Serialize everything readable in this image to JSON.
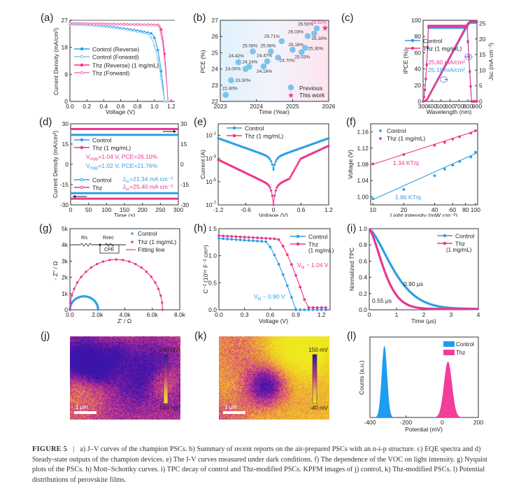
{
  "figure": {
    "caption_label": "FIGURE 5",
    "caption_text": "a) J–V curves of the champion PSCs. b) Summary of recent reports on the air-prepared PSCs with an n-i-p structure. c) EQE spectra and d) Steady-state outputs of the champion devices. e) The I-V curves measured under dark conditions. f) The dependence of the VOC on light intensity. g) Nyquist plots of the PSCs. h) Mott–Schottky curves. i) TPC decay of control and Thz-modified PSCs. KPFM images of j) control, k) Thz-modified PSCs. l) Potential distributions of perovskite films.",
    "panel_labels": [
      "(a)",
      "(b)",
      "(c)",
      "(d)",
      "(e)",
      "(f)",
      "(g)",
      "(h)",
      "(i)",
      "(j)",
      "(k)",
      "(l)"
    ]
  },
  "colors": {
    "control": "#2e9fe6",
    "thz": "#e8388f",
    "axis": "#333333"
  },
  "chart_data": [
    {
      "id": "a",
      "type": "line",
      "xlabel": "Voltage (V)",
      "ylabel": "Current Density (mA/cm²)",
      "xlim": [
        0,
        1.2
      ],
      "ylim": [
        0,
        27
      ],
      "xticks": [
        0,
        0.2,
        0.4,
        0.6,
        0.8,
        1.0,
        1.2
      ],
      "yticks": [
        0,
        9,
        18,
        27
      ],
      "series": [
        {
          "name": "Control (Reverse)",
          "color": "#2e9fe6",
          "marker": "filled",
          "jsc": 25.7,
          "voc": 1.13,
          "kink": 0.95
        },
        {
          "name": "Control (Forward)",
          "color": "#7cc4f0",
          "marker": "open",
          "jsc": 25.6,
          "voc": 1.13,
          "kink": 0.9
        },
        {
          "name": "Thz (Reverse)",
          "suffix": "(1 mg/mL)",
          "color": "#e8388f",
          "marker": "filled",
          "jsc": 26.0,
          "voc": 1.16,
          "kink": 1.05
        },
        {
          "name": "Thz (Forward)",
          "color": "#f07ab6",
          "marker": "open",
          "jsc": 25.9,
          "voc": 1.16,
          "kink": 1.03
        }
      ]
    },
    {
      "id": "b",
      "type": "scatter",
      "xlabel": "Time (Year)",
      "ylabel": "PCE (%)",
      "xlim": [
        2023,
        2026
      ],
      "ylim": [
        22,
        27
      ],
      "xticks": [
        2023,
        2024,
        2025,
        2026
      ],
      "yticks": [
        22,
        23,
        24,
        25,
        26,
        27
      ],
      "series": [
        {
          "name": "Previous",
          "color": "#7ec3ec",
          "points": [
            [
              2023.15,
              22.4,
              "22.40%"
            ],
            [
              2023.3,
              23.3,
              "23.30%"
            ],
            [
              2023.5,
              24.42,
              "24.42%"
            ],
            [
              2023.7,
              24.0,
              "24.00%"
            ],
            [
              2023.8,
              24.14,
              "24.14%"
            ],
            [
              2023.9,
              25.08,
              "25.08%"
            ],
            [
              2024.2,
              24.16,
              "24.16%"
            ],
            [
              2024.3,
              24.47,
              "24.47%"
            ],
            [
              2024.4,
              25.08,
              "25.08%"
            ],
            [
              2024.6,
              24.7,
              "24.70%"
            ],
            [
              2024.7,
              25.71,
              "25.71%"
            ],
            [
              2025.0,
              25.18,
              "25.18%"
            ],
            [
              2025.25,
              25.03,
              "25.03%"
            ],
            [
              2025.35,
              25.3,
              "25.30%"
            ],
            [
              2025.42,
              26.03,
              "26.03%"
            ],
            [
              2025.6,
              26.18,
              "26.18%"
            ],
            [
              2025.67,
              26.5,
              "26.50%"
            ]
          ]
        },
        {
          "name": "This work",
          "color": "#e8388f",
          "points": [
            [
              2025.9,
              26.52,
              "26.52%"
            ]
          ]
        }
      ]
    },
    {
      "id": "c",
      "type": "line",
      "xlabel": "Wavelength (nm)",
      "ylabel": "IPCE (%)",
      "y2label": "Jsc (mA cm⁻²)",
      "xlim": [
        300,
        900
      ],
      "ylim": [
        0,
        100
      ],
      "y2lim": [
        0,
        26
      ],
      "xticks": [
        300,
        400,
        500,
        600,
        700,
        800,
        900
      ],
      "yticks": [
        0,
        20,
        40,
        60,
        80,
        100
      ],
      "y2ticks": [
        0,
        5,
        10,
        15,
        20,
        25
      ],
      "series": [
        {
          "name": "Control",
          "color": "#2e9fe6",
          "plateau": 91,
          "integrated": "25.19 mA/cm²",
          "jsc_end": 25.19
        },
        {
          "name": "Thz (1 mg/mL)",
          "color": "#e8388f",
          "plateau": 93,
          "integrated": "25.60 mA/cm²",
          "jsc_end": 25.6
        }
      ]
    },
    {
      "id": "d",
      "type": "line",
      "xlabel": "Time (s)",
      "ylabel": "Current Density (mA/cm²)",
      "y2label": "PCE (%)",
      "xlim": [
        0,
        300
      ],
      "ylim": [
        -30,
        30
      ],
      "xticks": [
        0,
        50,
        100,
        150,
        200,
        250,
        300
      ],
      "yticks": [
        -30,
        -15,
        0,
        15,
        30
      ],
      "y2ticks": [
        -30,
        -15,
        0,
        15,
        30
      ],
      "series": [
        {
          "name": "Control",
          "color": "#2e9fe6",
          "pce": 21.76,
          "jsc": -21.34
        },
        {
          "name": "Thz (1 mg/mL)",
          "color": "#e8388f",
          "pce": 26.1,
          "jsc": -25.4
        }
      ],
      "annotations": {
        "thz_vmpp": "=1.04 V, PCE=26.10%",
        "control_vmpp": "=1.02 V, PCE=21.76%",
        "control_jsc": "=21.34 mA cm⁻²",
        "thz_jsc": "=25.40 mA cm⁻²",
        "legend2_control": "Control",
        "legend2_thz": "Thz",
        "vmpp": "V",
        "mpp": "mpp",
        "jsc": "J",
        "sc": "sc"
      }
    },
    {
      "id": "e",
      "type": "line",
      "xlabel": "Voltage (V)",
      "ylabel": "Current (A)",
      "yscale": "log",
      "xlim": [
        -1.2,
        1.2
      ],
      "ylim_exp": [
        -7,
        0
      ],
      "xticks": [
        -1.2,
        -0.6,
        0,
        0.6,
        1.2
      ],
      "yticks_exp": [
        -7,
        -5,
        -3,
        -1
      ],
      "series": [
        {
          "name": "Control",
          "color": "#2e9fe6"
        },
        {
          "name": "Thz (1 mg/mL)",
          "color": "#e8388f"
        }
      ]
    },
    {
      "id": "f",
      "type": "scatter",
      "xlabel": "Light intensity (mW cm⁻²)",
      "ylabel": "Voltage (V)",
      "xscale": "log",
      "xlim": [
        9.5,
        105
      ],
      "ylim": [
        0.98,
        1.18
      ],
      "xticks": [
        10,
        20,
        40,
        60,
        80,
        100
      ],
      "yticks": [
        1.0,
        1.04,
        1.08,
        1.12,
        1.16
      ],
      "series": [
        {
          "name": "Control",
          "color": "#2e9fe6",
          "slope_label": "1.86 KT/q",
          "points": [
            [
              10,
              0.995
            ],
            [
              20,
              1.018
            ],
            [
              40,
              1.052
            ],
            [
              50,
              1.068
            ],
            [
              60,
              1.078
            ],
            [
              70,
              1.087
            ],
            [
              90,
              1.098
            ],
            [
              100,
              1.11
            ]
          ],
          "fit": [
            [
              10,
              0.993
            ],
            [
              105,
              1.109
            ]
          ]
        },
        {
          "name": "Thz (1 mg/mL)",
          "color": "#e8388f",
          "slope_label": "1.34 KT/q",
          "points": [
            [
              10,
              1.081
            ],
            [
              20,
              1.104
            ],
            [
              40,
              1.127
            ],
            [
              50,
              1.134
            ],
            [
              60,
              1.142
            ],
            [
              70,
              1.148
            ],
            [
              90,
              1.157
            ],
            [
              100,
              1.163
            ]
          ],
          "fit": [
            [
              10,
              1.08
            ],
            [
              105,
              1.164
            ]
          ]
        }
      ]
    },
    {
      "id": "g",
      "type": "scatter",
      "xlabel": "Z' / Ω",
      "ylabel": "- Z'' / Ω",
      "xlim": [
        0,
        8000
      ],
      "ylim": [
        0,
        5000
      ],
      "xticks": [
        0,
        2000,
        4000,
        6000,
        8000
      ],
      "xticklabels": [
        "0.0",
        "2.0k",
        "4.0k",
        "6.0k",
        "8.0k"
      ],
      "yticks": [
        0,
        1000,
        2000,
        3000,
        4000,
        5000
      ],
      "yticklabels": [
        "0",
        "1k",
        "2k",
        "3k",
        "4k",
        "5k"
      ],
      "circuit": {
        "rs": "Rs",
        "rrec": "Rrec",
        "cpe": "CPE"
      },
      "series": [
        {
          "name": "Control",
          "color": "#2e9fe6",
          "x0": 0,
          "x1": 2050,
          "peak": 830
        },
        {
          "name": "Thz (1 mg/mL)",
          "color": "#e8388f",
          "x0": 0,
          "x1": 6750,
          "peak": 3100
        },
        {
          "name": "Fitting line",
          "color": "#e8388f"
        }
      ]
    },
    {
      "id": "h",
      "type": "line",
      "xlabel": "Voltage (V)",
      "ylabel": "C⁻² (10¹⁶ F⁻² cm⁴)",
      "xlim": [
        0,
        1.3
      ],
      "ylim": [
        0,
        1.5
      ],
      "xticks": [
        0,
        0.3,
        0.6,
        0.9,
        1.2
      ],
      "yticks": [
        0,
        0.5,
        1.0,
        1.5
      ],
      "series": [
        {
          "name": "Control",
          "color": "#2e9fe6",
          "vbi": 0.9,
          "vbi_label": "~ 0.90 V",
          "plateau": 1.32
        },
        {
          "name": "Thz",
          "suffix": "(1 mg/mL)",
          "color": "#e8388f",
          "vbi": 1.04,
          "vbi_label": "~ 1.04 V",
          "plateau": 1.37
        }
      ],
      "vbi_prefix": "V",
      "vbi_sub": "bi"
    },
    {
      "id": "i",
      "type": "line",
      "xlabel": "Time (μs)",
      "ylabel": "Normalized TPC",
      "xlim": [
        0,
        4
      ],
      "ylim": [
        0,
        1.0
      ],
      "xticks": [
        0,
        1,
        2,
        3,
        4
      ],
      "yticks": [
        0,
        0.2,
        0.4,
        0.6,
        0.8,
        1.0
      ],
      "series": [
        {
          "name": "Control",
          "color": "#2e9fe6",
          "tau": 0.9,
          "tau_label": "0.90 μs"
        },
        {
          "name": "Thz",
          "suffix": "(1 mg/mL)",
          "color": "#e8388f",
          "tau": 0.55,
          "tau_label": "0.55 μs"
        }
      ]
    },
    {
      "id": "j",
      "type": "heatmap",
      "colorbar_max": "-260 mV",
      "colorbar_min": "-380 mV",
      "scale_bar": "1 μm",
      "purple_fraction": 0.55
    },
    {
      "id": "k",
      "type": "heatmap",
      "colorbar_max": "150 mV",
      "colorbar_min": "-40 mV",
      "scale_bar": "1 μm",
      "purple_fraction": 0.3
    },
    {
      "id": "l",
      "type": "area",
      "xlabel": "Potential (mV)",
      "ylabel": "Counts (a.u.)",
      "xlim": [
        -400,
        200
      ],
      "xticks": [
        -400,
        -200,
        0,
        200
      ],
      "series": [
        {
          "name": "Control",
          "color": "#1e9cf0",
          "center": -320,
          "sigma": 15,
          "peak": 1.0
        },
        {
          "name": "Thz",
          "color": "#f23d9b",
          "center": 32,
          "sigma": 22,
          "peak": 0.78
        }
      ]
    }
  ]
}
